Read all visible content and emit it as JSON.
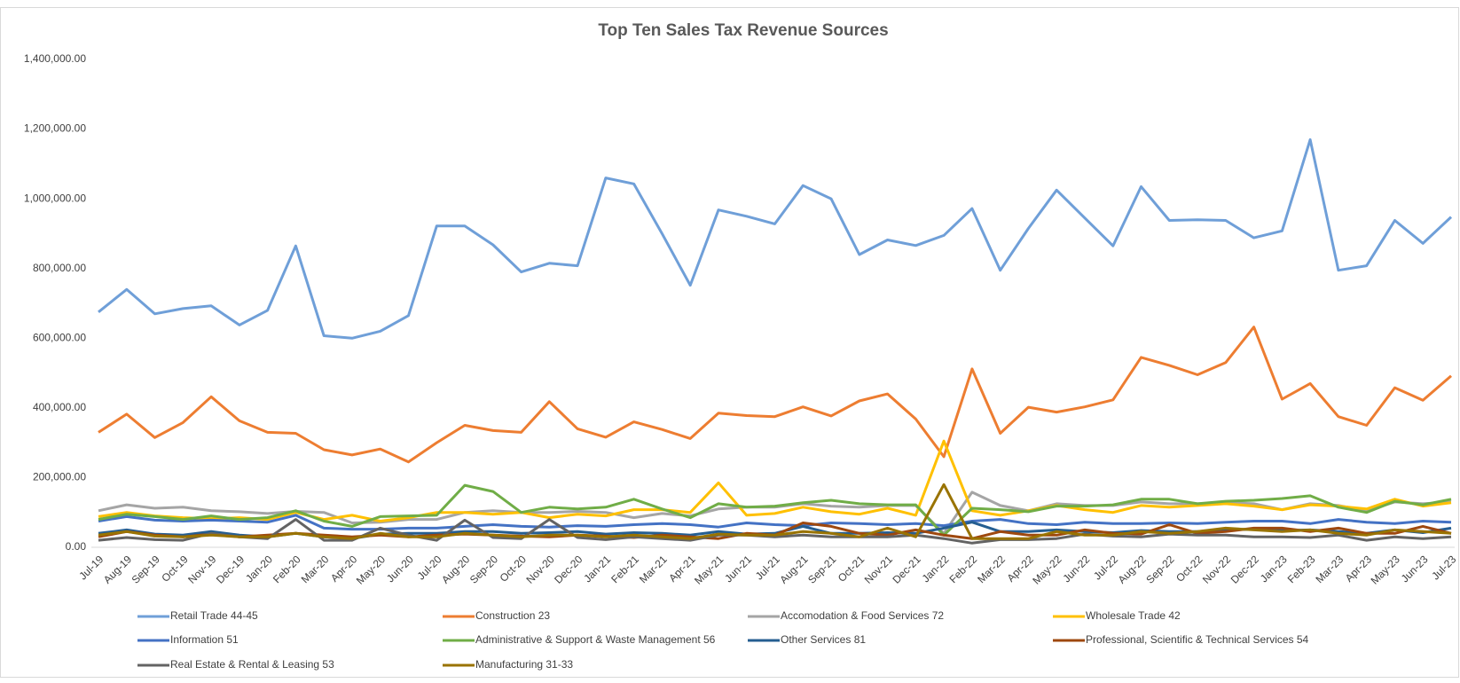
{
  "chart_data": {
    "type": "line",
    "title": "Top Ten Sales Tax Revenue Sources",
    "categories": [
      "Jul-19",
      "Aug-19",
      "Sep-19",
      "Oct-19",
      "Nov-19",
      "Dec-19",
      "Jan-20",
      "Feb-20",
      "Mar-20",
      "Apr-20",
      "May-20",
      "Jun-20",
      "Jul-20",
      "Aug-20",
      "Sep-20",
      "Oct-20",
      "Nov-20",
      "Dec-20",
      "Jan-21",
      "Feb-21",
      "Mar-21",
      "Apr-21",
      "May-21",
      "Jun-21",
      "Jul-21",
      "Aug-21",
      "Sep-21",
      "Oct-21",
      "Nov-21",
      "Dec-21",
      "Jan-22",
      "Feb-22",
      "Mar-22",
      "Apr-22",
      "May-22",
      "Jun-22",
      "Jul-22",
      "Aug-22",
      "Sep-22",
      "Oct-22",
      "Nov-22",
      "Dec-22",
      "Jan-23",
      "Feb-23",
      "Mar-23",
      "Apr-23",
      "May-23",
      "Jun-23",
      "Jul-23"
    ],
    "ylim": [
      0,
      1400000
    ],
    "yticks": [
      {
        "value": 0,
        "label": "0.00"
      },
      {
        "value": 200000,
        "label": "200,000.00"
      },
      {
        "value": 400000,
        "label": "400,000.00"
      },
      {
        "value": 600000,
        "label": "600,000.00"
      },
      {
        "value": 800000,
        "label": "800,000.00"
      },
      {
        "value": 1000000,
        "label": "1,000,000.00"
      },
      {
        "value": 1200000,
        "label": "1,200,000.00"
      },
      {
        "value": 1400000,
        "label": "1,400,000.00"
      }
    ],
    "grid": false,
    "legend": "bottom",
    "series": [
      {
        "name": "Retail Trade 44-45",
        "color": "#6f9fd8",
        "values": [
          675000,
          740000,
          670000,
          685000,
          693000,
          638000,
          680000,
          865000,
          607000,
          600000,
          620000,
          665000,
          922000,
          922000,
          868000,
          790000,
          815000,
          808000,
          1060000,
          1043000,
          900000,
          752000,
          968000,
          950000,
          928000,
          1038000,
          1000000,
          840000,
          882000,
          866000,
          895000,
          972000,
          795000,
          915000,
          1025000,
          945000,
          865000,
          1035000,
          938000,
          940000,
          938000,
          888000,
          908000,
          1170000,
          795000,
          808000,
          938000,
          872000,
          948000
        ]
      },
      {
        "name": "Construction 23",
        "color": "#ed7d31",
        "values": [
          330000,
          382000,
          315000,
          358000,
          432000,
          363000,
          330000,
          327000,
          280000,
          265000,
          282000,
          245000,
          300000,
          350000,
          335000,
          330000,
          418000,
          340000,
          316000,
          360000,
          338000,
          312000,
          385000,
          378000,
          375000,
          403000,
          377000,
          420000,
          440000,
          368000,
          260000,
          512000,
          327000,
          402000,
          388000,
          403000,
          423000,
          545000,
          522000,
          495000,
          530000,
          632000,
          425000,
          470000,
          375000,
          350000,
          458000,
          422000,
          492000
        ]
      },
      {
        "name": "Accomodation & Food Services 72",
        "color": "#a5a5a5",
        "values": [
          105000,
          122000,
          112000,
          115000,
          105000,
          102000,
          97000,
          103000,
          100000,
          70000,
          72000,
          80000,
          80000,
          100000,
          105000,
          100000,
          100000,
          103000,
          100000,
          85000,
          97000,
          90000,
          110000,
          115000,
          115000,
          125000,
          118000,
          115000,
          120000,
          120000,
          40000,
          158000,
          120000,
          105000,
          125000,
          120000,
          120000,
          130000,
          125000,
          125000,
          128000,
          125000,
          108000,
          125000,
          120000,
          105000,
          130000,
          125000,
          130000
        ]
      },
      {
        "name": "Wholesale Trade 42",
        "color": "#ffc000",
        "values": [
          88000,
          100000,
          90000,
          85000,
          82000,
          85000,
          80000,
          100000,
          80000,
          92000,
          75000,
          85000,
          100000,
          100000,
          95000,
          100000,
          85000,
          95000,
          90000,
          108000,
          108000,
          100000,
          185000,
          92000,
          97000,
          115000,
          102000,
          95000,
          112000,
          92000,
          305000,
          105000,
          92000,
          105000,
          120000,
          108000,
          100000,
          120000,
          115000,
          120000,
          125000,
          118000,
          108000,
          122000,
          118000,
          110000,
          138000,
          118000,
          128000
        ]
      },
      {
        "name": "Information 51",
        "color": "#4472c4",
        "values": [
          75000,
          88000,
          78000,
          75000,
          78000,
          75000,
          72000,
          92000,
          55000,
          52000,
          52000,
          55000,
          55000,
          60000,
          65000,
          60000,
          58000,
          62000,
          60000,
          65000,
          68000,
          65000,
          58000,
          70000,
          65000,
          62000,
          70000,
          68000,
          65000,
          68000,
          62000,
          75000,
          80000,
          68000,
          65000,
          72000,
          68000,
          68000,
          70000,
          68000,
          72000,
          75000,
          75000,
          68000,
          80000,
          72000,
          68000,
          75000,
          72000
        ]
      },
      {
        "name": "Administrative & Support & Waste Management 56",
        "color": "#70ad47",
        "values": [
          80000,
          95000,
          88000,
          80000,
          90000,
          80000,
          85000,
          105000,
          75000,
          60000,
          88000,
          90000,
          92000,
          178000,
          160000,
          100000,
          115000,
          110000,
          115000,
          138000,
          110000,
          85000,
          125000,
          115000,
          118000,
          128000,
          135000,
          125000,
          122000,
          122000,
          35000,
          112000,
          108000,
          102000,
          118000,
          118000,
          122000,
          138000,
          138000,
          125000,
          132000,
          135000,
          140000,
          148000,
          115000,
          100000,
          132000,
          122000,
          138000
        ]
      },
      {
        "name": "Other Services 81",
        "color": "#255e91",
        "values": [
          40000,
          50000,
          38000,
          35000,
          45000,
          35000,
          30000,
          40000,
          30000,
          25000,
          38000,
          40000,
          40000,
          45000,
          45000,
          40000,
          42000,
          45000,
          38000,
          42000,
          40000,
          35000,
          45000,
          38000,
          40000,
          60000,
          40000,
          40000,
          42000,
          40000,
          55000,
          72000,
          45000,
          45000,
          50000,
          45000,
          42000,
          48000,
          45000,
          45000,
          50000,
          52000,
          48000,
          50000,
          45000,
          40000,
          50000,
          42000,
          55000
        ]
      },
      {
        "name": "Professional, Scientific & Technical Services 54",
        "color": "#9e480e",
        "values": [
          30000,
          45000,
          35000,
          30000,
          38000,
          30000,
          35000,
          40000,
          35000,
          30000,
          35000,
          30000,
          35000,
          38000,
          35000,
          32000,
          30000,
          35000,
          32000,
          28000,
          35000,
          30000,
          25000,
          40000,
          35000,
          70000,
          60000,
          40000,
          35000,
          50000,
          35000,
          25000,
          45000,
          35000,
          35000,
          50000,
          40000,
          38000,
          65000,
          40000,
          45000,
          55000,
          55000,
          45000,
          55000,
          40000,
          40000,
          60000,
          40000
        ]
      },
      {
        "name": "Real Estate & Rental & Leasing 53",
        "color": "#636363",
        "values": [
          20000,
          28000,
          22000,
          20000,
          40000,
          30000,
          25000,
          80000,
          20000,
          20000,
          55000,
          35000,
          20000,
          78000,
          28000,
          25000,
          80000,
          28000,
          22000,
          30000,
          25000,
          20000,
          35000,
          35000,
          30000,
          35000,
          30000,
          30000,
          30000,
          35000,
          25000,
          12000,
          22000,
          22000,
          25000,
          38000,
          32000,
          30000,
          38000,
          35000,
          35000,
          30000,
          30000,
          28000,
          35000,
          20000,
          30000,
          25000,
          30000
        ]
      },
      {
        "name": "Manufacturing 31-33",
        "color": "#997300",
        "values": [
          35000,
          45000,
          32000,
          30000,
          35000,
          30000,
          30000,
          40000,
          30000,
          25000,
          40000,
          30000,
          30000,
          40000,
          35000,
          30000,
          35000,
          35000,
          30000,
          35000,
          30000,
          25000,
          38000,
          35000,
          35000,
          45000,
          40000,
          30000,
          55000,
          30000,
          180000,
          25000,
          25000,
          25000,
          45000,
          35000,
          35000,
          45000,
          40000,
          45000,
          55000,
          50000,
          45000,
          50000,
          40000,
          35000,
          50000,
          45000,
          40000
        ]
      }
    ]
  }
}
